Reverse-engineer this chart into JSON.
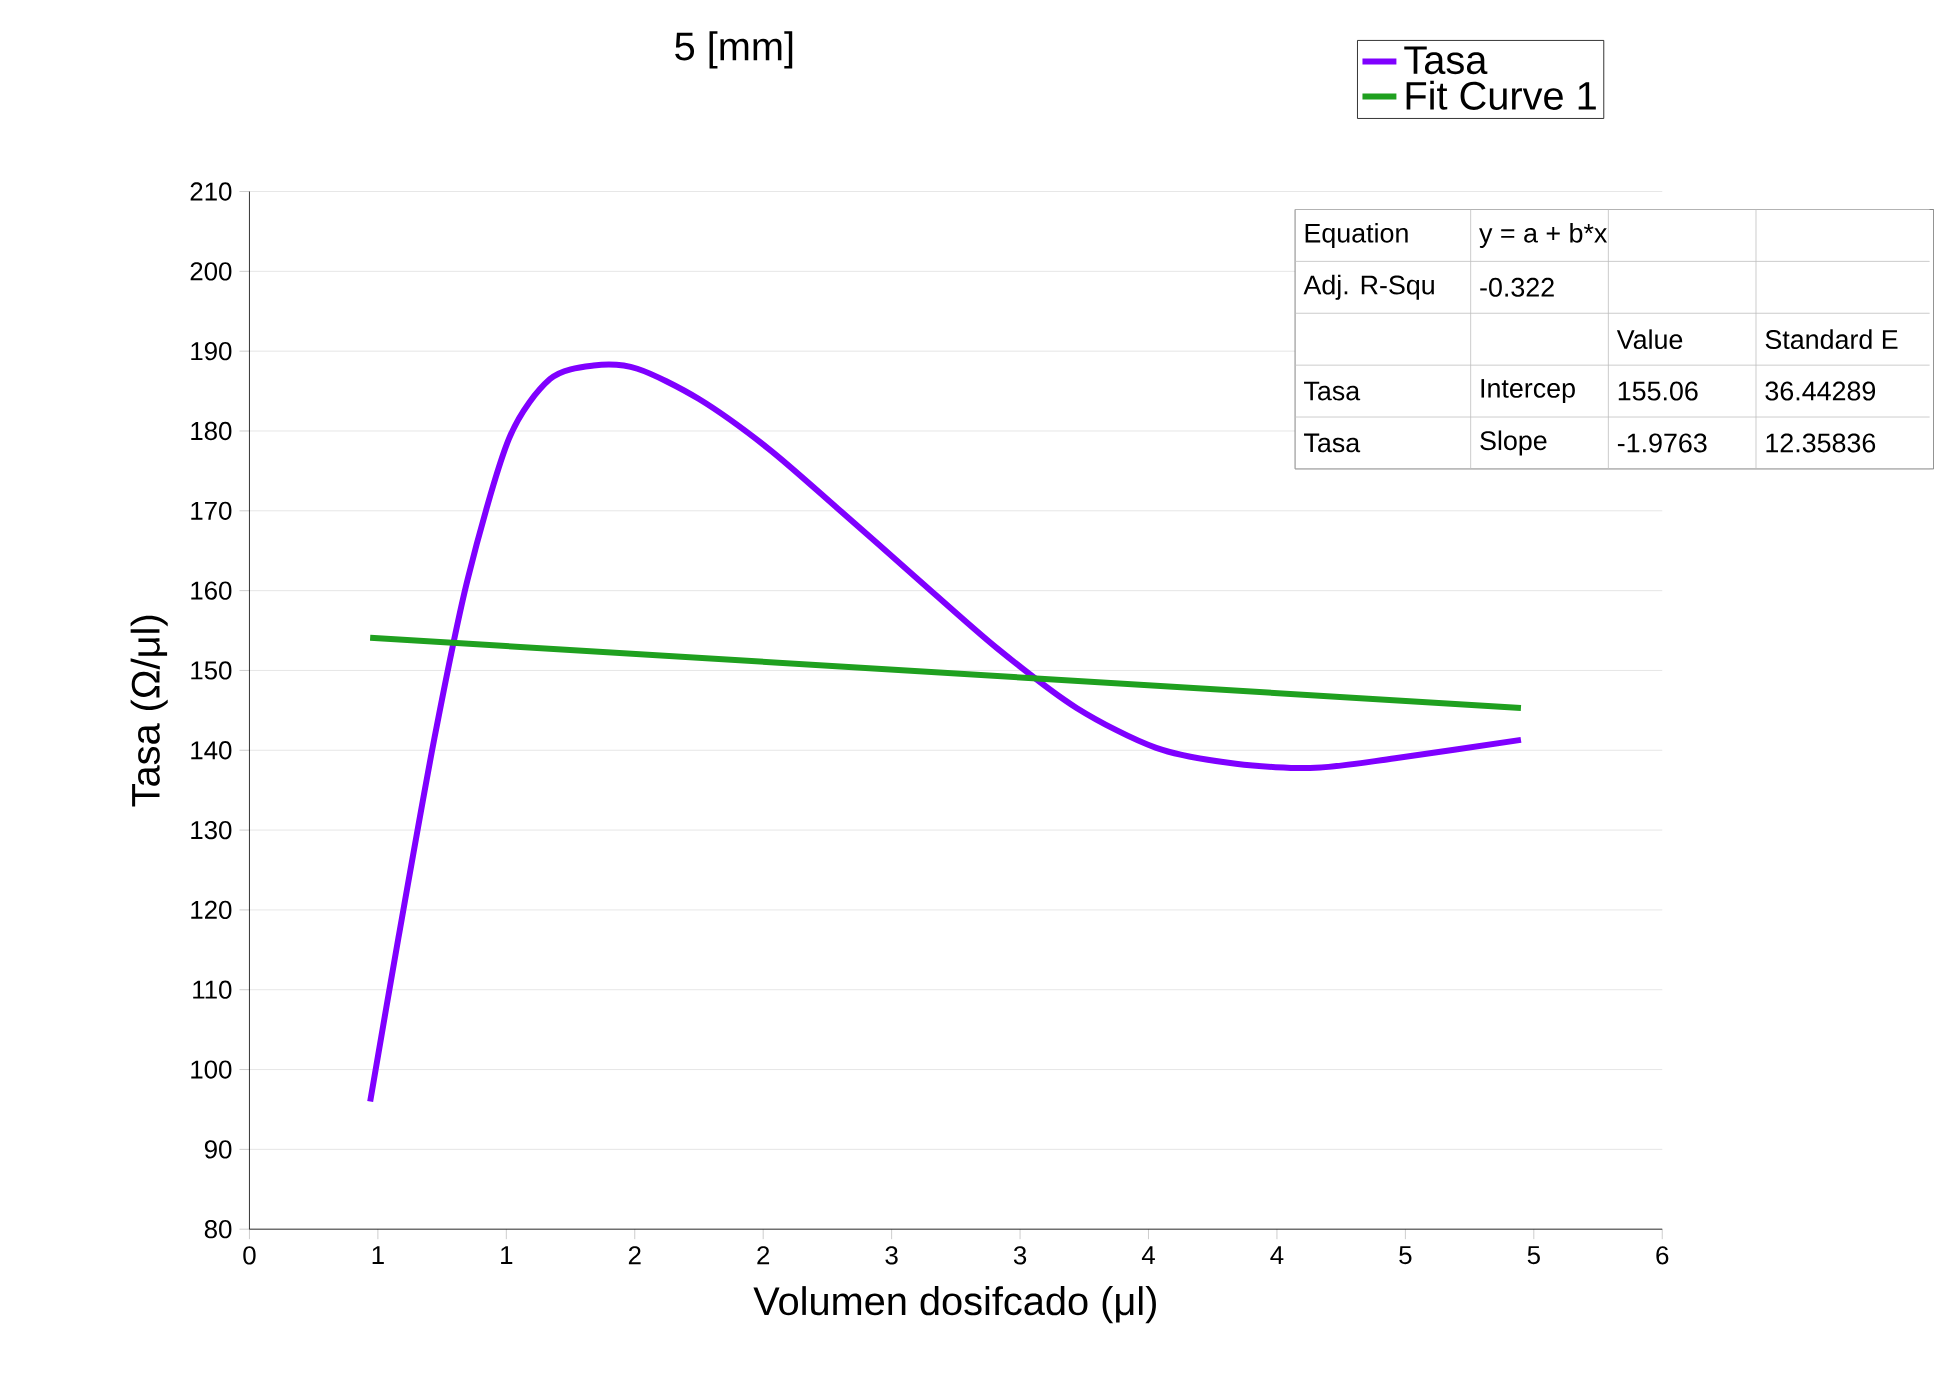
{
  "chart_data": {
    "type": "line",
    "title": "5 [mm]",
    "xlabel": "Volumen dosifcado (μl)",
    "ylabel": "Tasa (Ω/μl)",
    "xlim": [
      0,
      5.5
    ],
    "ylim": [
      80,
      210
    ],
    "xticks": [
      {
        "value": 0,
        "label": "0"
      },
      {
        "value": 0.5,
        "label": "1"
      },
      {
        "value": 1,
        "label": "1"
      },
      {
        "value": 1.5,
        "label": "2"
      },
      {
        "value": 2,
        "label": "2"
      },
      {
        "value": 2.5,
        "label": "3"
      },
      {
        "value": 3,
        "label": "3"
      },
      {
        "value": 3.5,
        "label": "4"
      },
      {
        "value": 4,
        "label": "4"
      },
      {
        "value": 4.5,
        "label": "5"
      },
      {
        "value": 5,
        "label": "5"
      },
      {
        "value": 5.5,
        "label": "6"
      }
    ],
    "yticks": [
      80,
      90,
      100,
      110,
      120,
      130,
      140,
      150,
      160,
      170,
      180,
      190,
      200,
      210
    ],
    "grid": "y",
    "legend": "top right",
    "line_style": "solid",
    "marker": "none",
    "series": [
      {
        "name": "Tasa",
        "color": "#7f00ff",
        "x": [
          0.47,
          0.58,
          0.72,
          0.85,
          1.01,
          1.17,
          1.34,
          1.51,
          1.75,
          2.02,
          2.29,
          2.6,
          2.91,
          3.22,
          3.53,
          3.84,
          4.15,
          4.46,
          4.95
        ],
        "values": [
          96,
          116.5,
          141.5,
          161.5,
          179,
          186.5,
          188.2,
          187.8,
          184,
          177.8,
          170.3,
          161.5,
          152.8,
          145.3,
          140.3,
          138.3,
          137.8,
          139,
          141.3
        ]
      },
      {
        "name": "Fit Curve 1",
        "color": "#1fa01f",
        "x": [
          0.47,
          4.95
        ],
        "values": [
          154.1,
          145.3
        ]
      }
    ],
    "annotations": [
      "Equation",
      "y = a + b*x",
      "Adj. R-Squ",
      "-0.322",
      "Value",
      "Standard E",
      "Tasa",
      "Intercep",
      "155.06",
      "36.44289",
      "Tasa",
      "Slope",
      "-1.9763",
      "12.35836"
    ]
  }
}
